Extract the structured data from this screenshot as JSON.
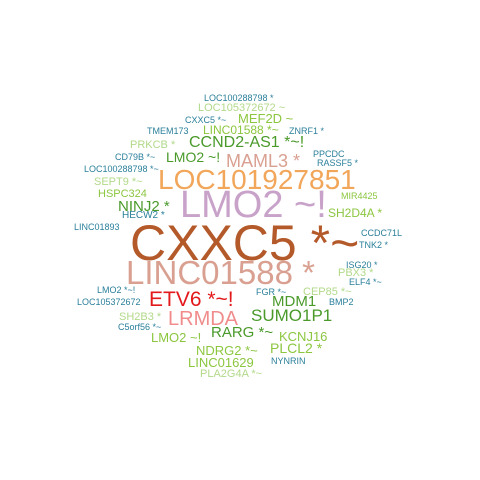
{
  "colors": {
    "brown": "#b45a2a",
    "orange": "#f2a65a",
    "mauve": "#c8a2c8",
    "salmon": "#d9a091",
    "pink": "#f08c8c",
    "red": "#e31a1c",
    "green": "#4a9a2a",
    "lightgreen": "#8cc63f",
    "palegreen": "#b2d98a",
    "teal": "#2a7f9a"
  },
  "words": [
    {
      "text": "LOC100288798 *",
      "color": "teal"
    },
    {
      "text": "LOC105372672 ~",
      "color": "palegreen"
    },
    {
      "text": "CXXC5 *~",
      "color": "teal"
    },
    {
      "text": "MEF2D ~",
      "color": "lightgreen"
    },
    {
      "text": "TMEM173",
      "color": "teal"
    },
    {
      "text": "LINC01588 *~",
      "color": "lightgreen"
    },
    {
      "text": "ZNRF1 *",
      "color": "teal"
    },
    {
      "text": "PRKCB *",
      "color": "palegreen"
    },
    {
      "text": "CCND2-AS1 *~!",
      "color": "green"
    },
    {
      "text": "CD79B *~",
      "color": "teal"
    },
    {
      "text": "LMO2 ~!",
      "color": "green"
    },
    {
      "text": "MAML3 *",
      "color": "salmon"
    },
    {
      "text": "PPCDC",
      "color": "teal"
    },
    {
      "text": "RASSF5 *",
      "color": "teal"
    },
    {
      "text": "LOC100288798 *~",
      "color": "teal"
    },
    {
      "text": "LOC101927851",
      "color": "orange"
    },
    {
      "text": "SEPT9 *~",
      "color": "palegreen"
    },
    {
      "text": "HSPC324",
      "color": "lightgreen"
    },
    {
      "text": "MIR4425",
      "color": "lightgreen"
    },
    {
      "text": "NINJ2 *",
      "color": "green"
    },
    {
      "text": "LMO2 ~!",
      "color": "mauve"
    },
    {
      "text": "SH2D4A *",
      "color": "lightgreen"
    },
    {
      "text": "HECW2 *",
      "color": "teal"
    },
    {
      "text": "LINC01893",
      "color": "teal"
    },
    {
      "text": "CCDC71L",
      "color": "teal"
    },
    {
      "text": "CXXC5 *~",
      "color": "brown"
    },
    {
      "text": "TNK2 *",
      "color": "teal"
    },
    {
      "text": "ISG20 *",
      "color": "teal"
    },
    {
      "text": "LINC01588 *",
      "color": "salmon"
    },
    {
      "text": "PBX3 *",
      "color": "palegreen"
    },
    {
      "text": "ELF4 *~",
      "color": "teal"
    },
    {
      "text": "LMO2 *~!",
      "color": "teal"
    },
    {
      "text": "FGR *~",
      "color": "teal"
    },
    {
      "text": "CEP85 *~",
      "color": "palegreen"
    },
    {
      "text": "ETV6 *~!",
      "color": "red"
    },
    {
      "text": "MDM1",
      "color": "green"
    },
    {
      "text": "LOC105372672",
      "color": "teal"
    },
    {
      "text": "BMP2",
      "color": "teal"
    },
    {
      "text": "SH2B3 *",
      "color": "palegreen"
    },
    {
      "text": "LRMDA",
      "color": "pink"
    },
    {
      "text": "SUMO1P1",
      "color": "green"
    },
    {
      "text": "C5orf56 *~",
      "color": "teal"
    },
    {
      "text": "RARG *~",
      "color": "green"
    },
    {
      "text": "LMO2 ~!",
      "color": "lightgreen"
    },
    {
      "text": "KCNJ16",
      "color": "lightgreen"
    },
    {
      "text": "NDRG2 *~",
      "color": "lightgreen"
    },
    {
      "text": "PLCL2 *",
      "color": "lightgreen"
    },
    {
      "text": "LINC01629",
      "color": "lightgreen"
    },
    {
      "text": "NYNRIN",
      "color": "teal"
    },
    {
      "text": "PLA2G4A *~",
      "color": "palegreen"
    }
  ]
}
